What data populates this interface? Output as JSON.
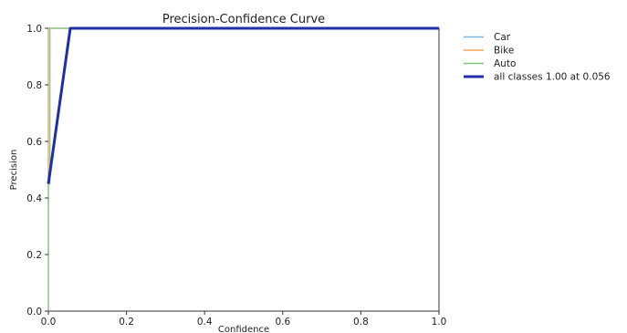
{
  "chart_data": {
    "type": "line",
    "title": "Precision-Confidence Curve",
    "xlabel": "Confidence",
    "ylabel": "Precision",
    "xlim": [
      0,
      1
    ],
    "ylim": [
      0,
      1
    ],
    "xticks": [
      "0.0",
      "0.2",
      "0.4",
      "0.6",
      "0.8",
      "1.0"
    ],
    "yticks": [
      "0.0",
      "0.2",
      "0.4",
      "0.6",
      "0.8",
      "1.0"
    ],
    "grid": false,
    "legend_placement": "outside right, top",
    "series": [
      {
        "name": "Car",
        "color": "#7fb3d5",
        "x": [
          0.0,
          0.0,
          1.0
        ],
        "y": [
          0.0,
          1.0,
          1.0
        ]
      },
      {
        "name": "Bike",
        "color": "#e8a95c",
        "x": [
          0.0,
          0.0,
          1.0
        ],
        "y": [
          0.0,
          1.0,
          1.0
        ]
      },
      {
        "name": "Auto",
        "color": "#7fc47f",
        "x": [
          0.0,
          0.0,
          0.004,
          0.004,
          1.0
        ],
        "y": [
          0.0,
          0.45,
          0.45,
          1.0,
          1.0
        ]
      },
      {
        "name": "all classes 1.00 at 0.056",
        "color": "#1f2fa8",
        "bold": true,
        "x": [
          0.0,
          0.056,
          1.0
        ],
        "y": [
          0.45,
          1.0,
          1.0
        ]
      }
    ]
  }
}
